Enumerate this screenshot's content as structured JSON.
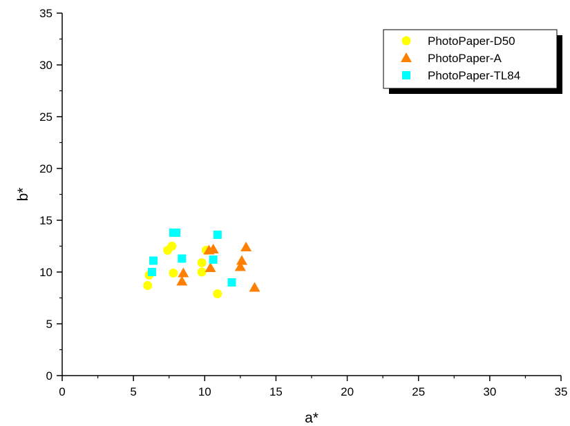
{
  "chart_data": {
    "type": "scatter",
    "xlabel": "a*",
    "ylabel": "b*",
    "xlim": [
      0,
      35
    ],
    "ylim": [
      0,
      35
    ],
    "xticks": [
      "0",
      "5",
      "10",
      "15",
      "20",
      "25",
      "30",
      "35"
    ],
    "yticks": [
      "0",
      "5",
      "10",
      "15",
      "20",
      "25",
      "30",
      "35"
    ],
    "grid": false,
    "legend_position": "top-right",
    "series": [
      {
        "name": "PhotoPaper-D50",
        "marker": "circle",
        "color": "#FFFF00",
        "points": [
          [
            6.0,
            8.7
          ],
          [
            6.1,
            9.7
          ],
          [
            7.4,
            12.1
          ],
          [
            7.7,
            12.5
          ],
          [
            7.8,
            9.9
          ],
          [
            9.8,
            10.9
          ],
          [
            9.8,
            10.0
          ],
          [
            10.1,
            12.1
          ],
          [
            10.9,
            7.9
          ]
        ]
      },
      {
        "name": "PhotoPaper-A",
        "marker": "triangle",
        "color": "#FF7F00",
        "points": [
          [
            8.4,
            9.1
          ],
          [
            8.5,
            9.9
          ],
          [
            10.3,
            12.1
          ],
          [
            10.4,
            10.4
          ],
          [
            10.6,
            12.2
          ],
          [
            12.5,
            10.5
          ],
          [
            12.6,
            11.1
          ],
          [
            12.9,
            12.4
          ],
          [
            13.5,
            8.5
          ]
        ]
      },
      {
        "name": "PhotoPaper-TL84",
        "marker": "square",
        "color": "#00FFFF",
        "points": [
          [
            6.3,
            10.0
          ],
          [
            6.4,
            11.1
          ],
          [
            7.8,
            13.8
          ],
          [
            8.0,
            13.8
          ],
          [
            8.4,
            11.3
          ],
          [
            10.6,
            11.2
          ],
          [
            10.9,
            13.6
          ],
          [
            11.9,
            9.0
          ]
        ]
      }
    ]
  }
}
